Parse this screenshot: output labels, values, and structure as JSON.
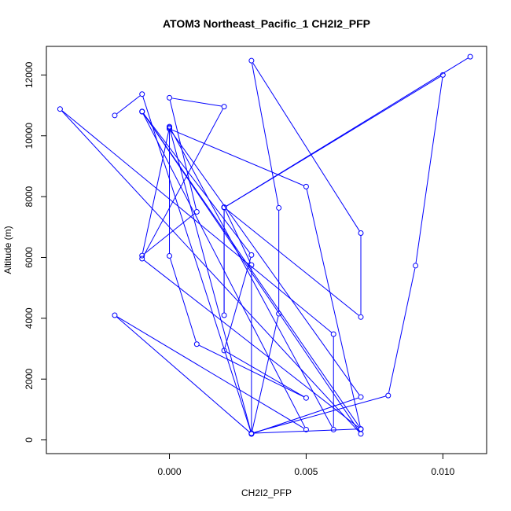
{
  "chart_data": {
    "type": "line",
    "title": "ATOM3 Northeast_Pacific_1 CH2I2_PFP",
    "xlabel": "CH2I2_PFP",
    "ylabel": "Altitude (m)",
    "xlim": [
      -0.0045,
      0.0116
    ],
    "ylim": [
      -450,
      12940
    ],
    "x_ticks": [
      0.0,
      0.005,
      0.01
    ],
    "x_tick_labels": [
      "0.000",
      "0.005",
      "0.010"
    ],
    "y_ticks": [
      0,
      2000,
      4000,
      6000,
      8000,
      10000,
      12000
    ],
    "y_tick_labels": [
      "0",
      "2000",
      "4000",
      "6000",
      "8000",
      "10000",
      "12000"
    ],
    "grid": false,
    "series": [
      {
        "color": "#0000ff",
        "marker": "open-circle",
        "points": [
          {
            "x": 0.011,
            "y": 12600
          },
          {
            "x": 0.002,
            "y": 7640
          },
          {
            "x": 0.01,
            "y": 12000
          },
          {
            "x": 0.009,
            "y": 5730
          },
          {
            "x": 0.008,
            "y": 1460
          },
          {
            "x": 0.003,
            "y": 220
          },
          {
            "x": 0.007,
            "y": 360
          },
          {
            "x": -0.001,
            "y": 10800
          },
          {
            "x": 0.007,
            "y": 200
          },
          {
            "x": -0.004,
            "y": 10880
          },
          {
            "x": 0.006,
            "y": 3480
          },
          {
            "x": 0.006,
            "y": 340
          },
          {
            "x": 0.0,
            "y": 10300
          },
          {
            "x": 0.0,
            "y": 6050
          },
          {
            "x": 0.001,
            "y": 3150
          },
          {
            "x": 0.005,
            "y": 1380
          },
          {
            "x": 0.002,
            "y": 2940
          },
          {
            "x": 0.003,
            "y": 6080
          },
          {
            "x": -0.001,
            "y": 10790
          },
          {
            "x": 0.005,
            "y": 340
          },
          {
            "x": -0.002,
            "y": 4100
          },
          {
            "x": 0.003,
            "y": 200
          },
          {
            "x": 0.004,
            "y": 4150
          },
          {
            "x": 0.004,
            "y": 7630
          },
          {
            "x": 0.003,
            "y": 12470
          },
          {
            "x": 0.007,
            "y": 6800
          },
          {
            "x": 0.007,
            "y": 4040
          },
          {
            "x": 0.002,
            "y": 7650
          },
          {
            "x": 0.002,
            "y": 4100
          },
          {
            "x": 0.002,
            "y": 7650
          },
          {
            "x": 0.003,
            "y": 5750
          },
          {
            "x": 0.003,
            "y": 200
          },
          {
            "x": 0.007,
            "y": 1410
          },
          {
            "x": 0.0,
            "y": 10230
          },
          {
            "x": 0.005,
            "y": 8330
          },
          {
            "x": 0.007,
            "y": 350
          },
          {
            "x": -0.001,
            "y": 5960
          },
          {
            "x": 0.002,
            "y": 10960
          },
          {
            "x": 0.0,
            "y": 11250
          },
          {
            "x": 0.001,
            "y": 7500
          },
          {
            "x": -0.001,
            "y": 6060
          },
          {
            "x": 0.0,
            "y": 10270
          },
          {
            "x": 0.003,
            "y": 200
          },
          {
            "x": -0.001,
            "y": 11370
          },
          {
            "x": -0.002,
            "y": 10670
          }
        ]
      }
    ]
  }
}
